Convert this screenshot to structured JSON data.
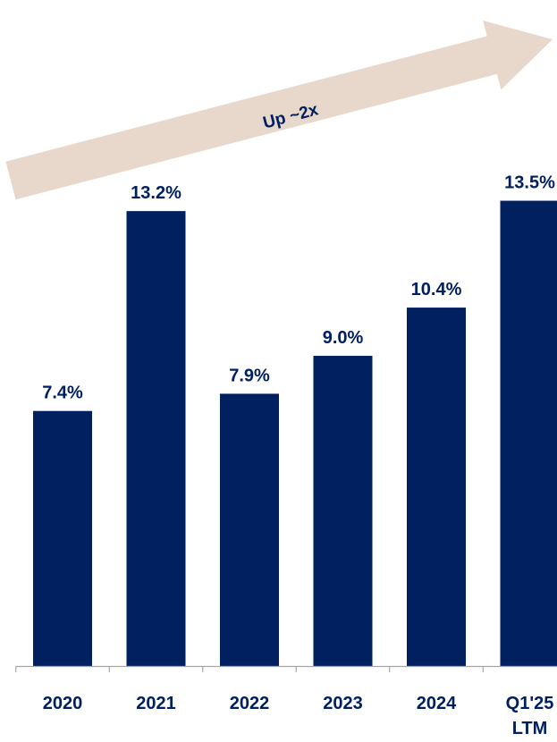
{
  "chart_data": {
    "type": "bar",
    "categories": [
      "2020",
      "2021",
      "2022",
      "2023",
      "2024",
      "Q1'25 LTM"
    ],
    "category_lines": [
      [
        "2020"
      ],
      [
        "2021"
      ],
      [
        "2022"
      ],
      [
        "2023"
      ],
      [
        "2024"
      ],
      [
        "Q1'25",
        "LTM"
      ]
    ],
    "values": [
      7.4,
      13.2,
      7.9,
      9.0,
      10.4,
      13.5
    ],
    "value_labels": [
      "7.4%",
      "13.2%",
      "7.9%",
      "9.0%",
      "10.4%",
      "13.5%"
    ],
    "ylim": [
      0,
      14.5
    ],
    "grid": false,
    "annotations": [
      {
        "type": "arrow",
        "text": "Up ~2x"
      }
    ],
    "colors": {
      "bar": "#002060",
      "text": "#002060",
      "arrow": "#e8d8cc",
      "axis": "#a6a6a6"
    }
  }
}
